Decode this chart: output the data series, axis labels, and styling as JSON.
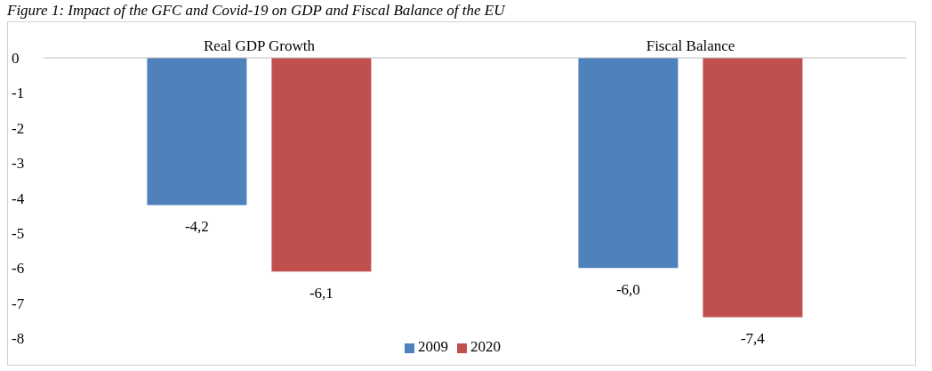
{
  "chart_data": {
    "type": "bar",
    "title": "Figure 1: Impact of the GFC and Covid-19 on GDP and Fiscal Balance of the EU",
    "categories": [
      "Real GDP Growth",
      "Fiscal Balance"
    ],
    "series": [
      {
        "name": "2009",
        "color": "#4f81bd",
        "values": [
          -4.2,
          -6.0
        ],
        "value_labels": [
          "-4,2",
          "-6,0"
        ]
      },
      {
        "name": "2020",
        "color": "#c0504d",
        "values": [
          -6.1,
          -7.4
        ],
        "value_labels": [
          "-6,1",
          "-7,4"
        ]
      }
    ],
    "ylim": [
      -8,
      0
    ],
    "yticks": [
      0,
      -1,
      -2,
      -3,
      -4,
      -5,
      -6,
      -7,
      -8
    ],
    "grid": false,
    "legend": "bottom"
  }
}
